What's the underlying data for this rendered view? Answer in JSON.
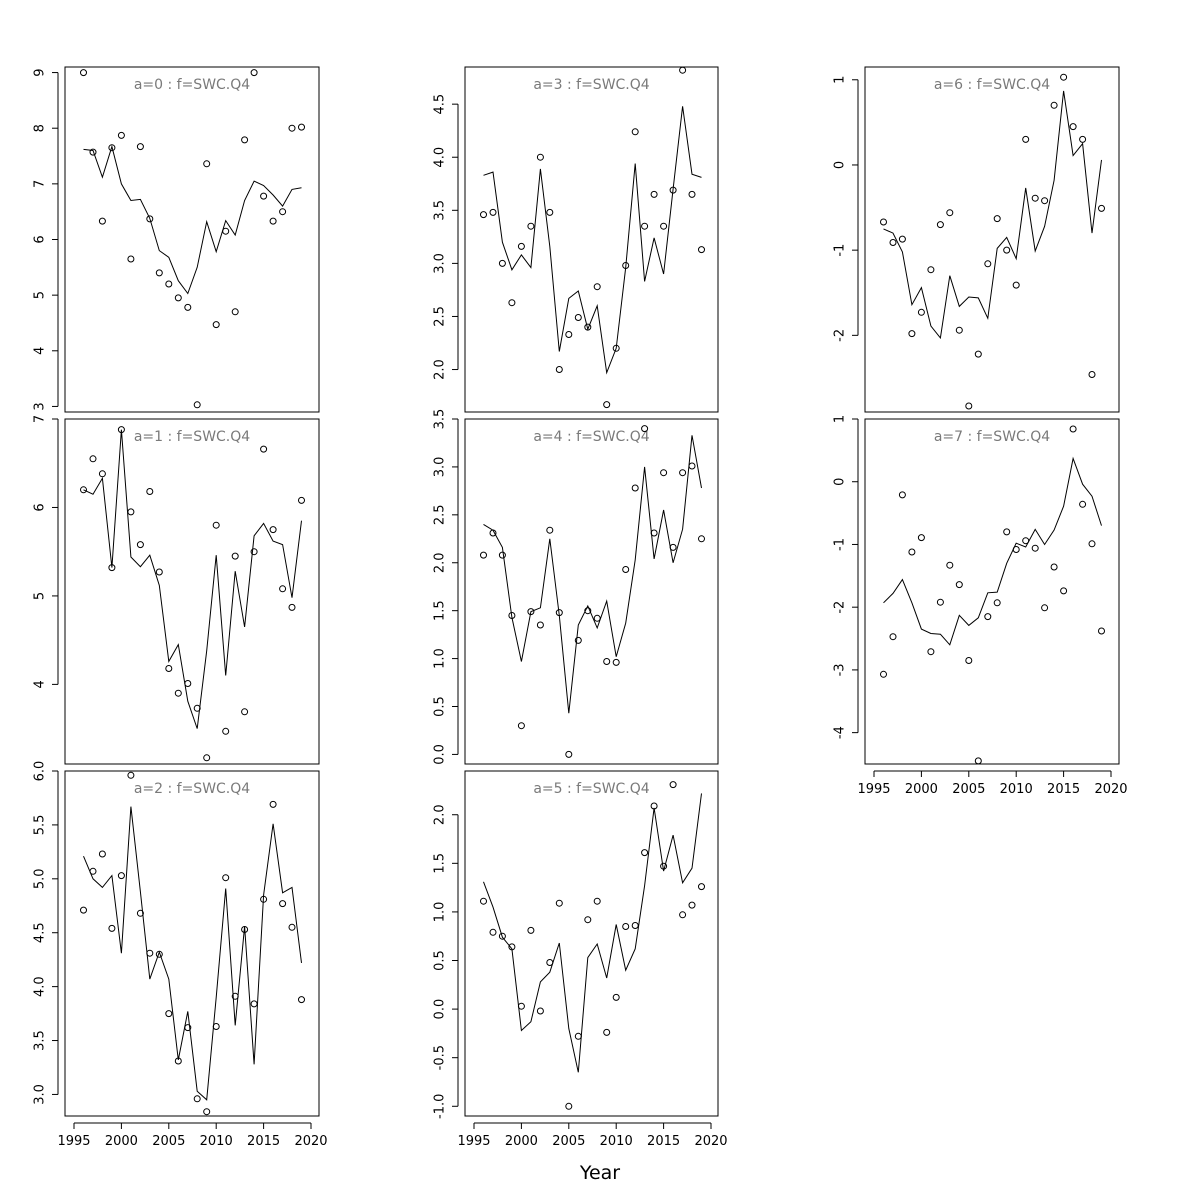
{
  "figure": {
    "xlabel": "Year"
  },
  "chart_data": [
    {
      "type": "scatter",
      "title": "a=0  :  f=SWC.Q4",
      "xlabel": "",
      "ylabel": "",
      "xlim": [
        1995,
        2020
      ],
      "ylim": [
        2.9,
        9.1
      ],
      "yticks": [
        3,
        4,
        5,
        6,
        7,
        8,
        9
      ],
      "xticks": [],
      "series": [
        {
          "kind": "points",
          "x": [
            1996,
            1997,
            1998,
            1999,
            2000,
            2001,
            2002,
            2003,
            2004,
            2005,
            2006,
            2007,
            2008,
            2009,
            2010,
            2011,
            2012,
            2013,
            2014,
            2015,
            2016,
            2017,
            2018,
            2019
          ],
          "values": [
            9.0,
            7.57,
            6.33,
            7.65,
            7.87,
            5.65,
            7.67,
            6.37,
            5.4,
            5.2,
            4.95,
            4.78,
            3.03,
            7.36,
            4.47,
            6.15,
            4.7,
            7.79,
            9.0,
            6.78,
            6.33,
            6.5,
            8.0,
            8.02
          ]
        },
        {
          "kind": "line",
          "x": [
            1996,
            1997,
            1998,
            1999,
            2000,
            2001,
            2002,
            2003,
            2004,
            2005,
            2006,
            2007,
            2008,
            2009,
            2010,
            2011,
            2012,
            2013,
            2014,
            2015,
            2016,
            2017,
            2018,
            2019
          ],
          "values": [
            7.62,
            7.6,
            7.12,
            7.67,
            7.0,
            6.7,
            6.72,
            6.38,
            5.8,
            5.68,
            5.26,
            5.03,
            5.5,
            6.32,
            5.78,
            6.34,
            6.08,
            6.7,
            7.05,
            6.97,
            6.8,
            6.6,
            6.9,
            6.93
          ]
        }
      ]
    },
    {
      "type": "scatter",
      "title": "a=1  :  f=SWC.Q4",
      "xlabel": "",
      "ylabel": "",
      "xlim": [
        1995,
        2020
      ],
      "ylim": [
        3.1,
        7.0
      ],
      "yticks": [
        4,
        5,
        6,
        7
      ],
      "xticks": [],
      "series": [
        {
          "kind": "points",
          "x": [
            1996,
            1997,
            1998,
            1999,
            2000,
            2001,
            2002,
            2003,
            2004,
            2005,
            2006,
            2007,
            2008,
            2009,
            2010,
            2011,
            2012,
            2013,
            2014,
            2015,
            2016,
            2017,
            2018,
            2019
          ],
          "values": [
            6.2,
            6.55,
            6.38,
            5.32,
            6.88,
            5.95,
            5.58,
            6.18,
            5.27,
            4.18,
            3.9,
            4.01,
            3.73,
            3.17,
            5.8,
            3.47,
            5.45,
            3.69,
            5.5,
            6.66,
            5.75,
            5.08,
            4.87,
            6.08
          ]
        },
        {
          "kind": "line",
          "x": [
            1996,
            1997,
            1998,
            1999,
            2000,
            2001,
            2002,
            2003,
            2004,
            2005,
            2006,
            2007,
            2008,
            2009,
            2010,
            2011,
            2012,
            2013,
            2014,
            2015,
            2016,
            2017,
            2018,
            2019
          ],
          "values": [
            6.2,
            6.15,
            6.33,
            5.32,
            6.88,
            5.44,
            5.33,
            5.46,
            5.12,
            4.26,
            4.45,
            3.81,
            3.5,
            4.38,
            5.46,
            4.1,
            5.28,
            4.65,
            5.68,
            5.82,
            5.62,
            5.58,
            4.98,
            5.85
          ]
        }
      ]
    },
    {
      "type": "scatter",
      "title": "a=2  :  f=SWC.Q4",
      "xlabel": "",
      "ylabel": "",
      "xlim": [
        1995,
        2020
      ],
      "ylim": [
        2.8,
        6.0
      ],
      "yticks": [
        3.0,
        3.5,
        4.0,
        4.5,
        5.0,
        5.5,
        6.0
      ],
      "ytick_labels": [
        "3.0",
        "3.5",
        "4.0",
        "4.5",
        "5.0",
        "5.5",
        "6.0"
      ],
      "xticks": [
        1995,
        2000,
        2005,
        2010,
        2015,
        2020
      ],
      "series": [
        {
          "kind": "points",
          "x": [
            1996,
            1997,
            1998,
            1999,
            2000,
            2001,
            2002,
            2003,
            2004,
            2005,
            2006,
            2007,
            2008,
            2009,
            2010,
            2011,
            2012,
            2013,
            2014,
            2015,
            2016,
            2017,
            2018,
            2019
          ],
          "values": [
            4.71,
            5.07,
            5.23,
            4.54,
            5.03,
            5.96,
            4.68,
            4.31,
            4.3,
            3.75,
            3.31,
            3.62,
            2.96,
            2.84,
            3.63,
            5.01,
            3.91,
            4.53,
            3.84,
            4.81,
            5.69,
            4.77,
            4.55,
            3.88
          ]
        },
        {
          "kind": "line",
          "x": [
            1996,
            1997,
            1998,
            1999,
            2000,
            2001,
            2002,
            2003,
            2004,
            2005,
            2006,
            2007,
            2008,
            2009,
            2010,
            2011,
            2012,
            2013,
            2014,
            2015,
            2016,
            2017,
            2018,
            2019
          ],
          "values": [
            5.21,
            5.0,
            4.92,
            5.03,
            4.31,
            5.67,
            4.88,
            4.07,
            4.32,
            4.07,
            3.32,
            3.77,
            3.03,
            2.95,
            3.9,
            4.91,
            3.64,
            4.56,
            3.28,
            4.85,
            5.51,
            4.87,
            4.92,
            4.22
          ]
        }
      ]
    },
    {
      "type": "scatter",
      "title": "a=3  :  f=SWC.Q4",
      "xlabel": "",
      "ylabel": "",
      "xlim": [
        1995,
        2020
      ],
      "ylim": [
        1.6,
        4.85
      ],
      "yticks": [
        2.0,
        2.5,
        3.0,
        3.5,
        4.0,
        4.5
      ],
      "ytick_labels": [
        "2.0",
        "2.5",
        "3.0",
        "3.5",
        "4.0",
        "4.5"
      ],
      "xticks": [],
      "series": [
        {
          "kind": "points",
          "x": [
            1996,
            1997,
            1998,
            1999,
            2000,
            2001,
            2002,
            2003,
            2004,
            2005,
            2006,
            2007,
            2008,
            2009,
            2010,
            2011,
            2012,
            2013,
            2014,
            2015,
            2016,
            2017,
            2018,
            2019
          ],
          "values": [
            3.46,
            3.48,
            3.0,
            2.63,
            3.16,
            3.35,
            4.0,
            3.48,
            2.0,
            2.33,
            2.49,
            2.4,
            2.78,
            1.67,
            2.2,
            2.98,
            4.24,
            3.35,
            3.65,
            3.35,
            3.69,
            4.82,
            3.65,
            3.13
          ]
        },
        {
          "kind": "line",
          "x": [
            1996,
            1997,
            1998,
            1999,
            2000,
            2001,
            2002,
            2003,
            2004,
            2005,
            2006,
            2007,
            2008,
            2009,
            2010,
            2011,
            2012,
            2013,
            2014,
            2015,
            2016,
            2017,
            2018,
            2019
          ],
          "values": [
            3.83,
            3.86,
            3.2,
            2.94,
            3.08,
            2.96,
            3.89,
            3.16,
            2.17,
            2.67,
            2.74,
            2.38,
            2.6,
            1.97,
            2.2,
            2.96,
            3.94,
            2.83,
            3.24,
            2.9,
            3.7,
            4.48,
            3.84,
            3.81
          ]
        }
      ]
    },
    {
      "type": "scatter",
      "title": "a=4  :  f=SWC.Q4",
      "xlabel": "",
      "ylabel": "",
      "xlim": [
        1995,
        2020
      ],
      "ylim": [
        -0.1,
        3.5
      ],
      "yticks": [
        0.0,
        0.5,
        1.0,
        1.5,
        2.0,
        2.5,
        3.0,
        3.5
      ],
      "ytick_labels": [
        "0.0",
        "0.5",
        "1.0",
        "1.5",
        "2.0",
        "2.5",
        "3.0",
        "3.5"
      ],
      "xticks": [],
      "series": [
        {
          "kind": "points",
          "x": [
            1996,
            1997,
            1998,
            1999,
            2000,
            2001,
            2002,
            2003,
            2004,
            2005,
            2006,
            2007,
            2008,
            2009,
            2010,
            2011,
            2012,
            2013,
            2014,
            2015,
            2016,
            2017,
            2018,
            2019
          ],
          "values": [
            2.08,
            2.31,
            2.08,
            1.45,
            0.3,
            1.49,
            1.35,
            2.34,
            1.48,
            0.0,
            1.19,
            1.5,
            1.42,
            0.97,
            0.96,
            1.93,
            2.78,
            3.4,
            2.31,
            2.94,
            2.16,
            2.94,
            3.01,
            2.25
          ]
        },
        {
          "kind": "line",
          "x": [
            1996,
            1997,
            1998,
            1999,
            2000,
            2001,
            2002,
            2003,
            2004,
            2005,
            2006,
            2007,
            2008,
            2009,
            2010,
            2011,
            2012,
            2013,
            2014,
            2015,
            2016,
            2017,
            2018,
            2019
          ],
          "values": [
            2.4,
            2.34,
            2.16,
            1.43,
            0.97,
            1.49,
            1.53,
            2.25,
            1.45,
            0.43,
            1.35,
            1.55,
            1.32,
            1.6,
            1.02,
            1.37,
            2.03,
            3.0,
            2.04,
            2.55,
            2.0,
            2.35,
            3.33,
            2.78
          ]
        }
      ]
    },
    {
      "type": "scatter",
      "title": "a=5  :  f=SWC.Q4",
      "xlabel": "",
      "ylabel": "",
      "xlim": [
        1995,
        2020
      ],
      "ylim": [
        -1.1,
        2.45
      ],
      "yticks": [
        -1.0,
        -0.5,
        0.0,
        0.5,
        1.0,
        1.5,
        2.0
      ],
      "ytick_labels": [
        "-1.0",
        "-0.5",
        "0.0",
        "0.5",
        "1.0",
        "1.5",
        "2.0"
      ],
      "xticks": [
        1995,
        2000,
        2005,
        2010,
        2015,
        2020
      ],
      "series": [
        {
          "kind": "points",
          "x": [
            1996,
            1997,
            1998,
            1999,
            2000,
            2001,
            2002,
            2003,
            2004,
            2005,
            2006,
            2007,
            2008,
            2009,
            2010,
            2011,
            2012,
            2013,
            2014,
            2015,
            2016,
            2017,
            2018,
            2019
          ],
          "values": [
            1.11,
            0.79,
            0.75,
            0.64,
            0.03,
            0.81,
            -0.02,
            0.48,
            1.09,
            -1.0,
            -0.28,
            0.92,
            1.11,
            -0.24,
            0.12,
            0.85,
            0.86,
            1.61,
            2.09,
            1.47,
            2.31,
            0.97,
            1.07,
            1.26
          ]
        },
        {
          "kind": "line",
          "x": [
            1996,
            1997,
            1998,
            1999,
            2000,
            2001,
            2002,
            2003,
            2004,
            2005,
            2006,
            2007,
            2008,
            2009,
            2010,
            2011,
            2012,
            2013,
            2014,
            2015,
            2016,
            2017,
            2018,
            2019
          ],
          "values": [
            1.31,
            1.05,
            0.74,
            0.62,
            -0.22,
            -0.13,
            0.28,
            0.38,
            0.68,
            -0.2,
            -0.65,
            0.53,
            0.67,
            0.32,
            0.87,
            0.4,
            0.62,
            1.27,
            2.07,
            1.42,
            1.79,
            1.3,
            1.45,
            2.22
          ]
        }
      ]
    },
    {
      "type": "scatter",
      "title": "a=6  :  f=SWC.Q4",
      "xlabel": "",
      "ylabel": "",
      "xlim": [
        1995,
        2020
      ],
      "ylim": [
        -2.9,
        1.15
      ],
      "yticks": [
        -2,
        -1,
        0,
        1
      ],
      "xticks": [],
      "series": [
        {
          "kind": "points",
          "x": [
            1996,
            1997,
            1998,
            1999,
            2000,
            2001,
            2002,
            2003,
            2004,
            2005,
            2006,
            2007,
            2008,
            2009,
            2010,
            2011,
            2012,
            2013,
            2014,
            2015,
            2016,
            2017,
            2018,
            2019
          ],
          "values": [
            -0.67,
            -0.91,
            -0.87,
            -1.98,
            -1.73,
            -1.23,
            -0.7,
            -0.56,
            -1.94,
            -2.83,
            -2.22,
            -1.16,
            -0.63,
            -1.0,
            -1.41,
            0.3,
            -0.39,
            -0.42,
            0.7,
            1.03,
            0.45,
            0.3,
            -2.46,
            -0.51
          ]
        },
        {
          "kind": "line",
          "x": [
            1996,
            1997,
            1998,
            1999,
            2000,
            2001,
            2002,
            2003,
            2004,
            2005,
            2006,
            2007,
            2008,
            2009,
            2010,
            2011,
            2012,
            2013,
            2014,
            2015,
            2016,
            2017,
            2018,
            2019
          ],
          "values": [
            -0.75,
            -0.8,
            -1.02,
            -1.64,
            -1.44,
            -1.89,
            -2.03,
            -1.3,
            -1.66,
            -1.55,
            -1.56,
            -1.8,
            -0.98,
            -0.85,
            -1.1,
            -0.27,
            -1.01,
            -0.72,
            -0.18,
            0.87,
            0.11,
            0.25,
            -0.8,
            0.06
          ]
        }
      ]
    },
    {
      "type": "scatter",
      "title": "a=7  :  f=SWC.Q4",
      "xlabel": "",
      "ylabel": "",
      "xlim": [
        1995,
        2020
      ],
      "ylim": [
        -4.5,
        1.0
      ],
      "yticks": [
        -4,
        -3,
        -2,
        -1,
        0,
        1
      ],
      "xticks": [
        1995,
        2000,
        2005,
        2010,
        2015,
        2020
      ],
      "series": [
        {
          "kind": "points",
          "x": [
            1996,
            1997,
            1998,
            1999,
            2000,
            2001,
            2002,
            2003,
            2004,
            2005,
            2006,
            2007,
            2008,
            2009,
            2010,
            2011,
            2012,
            2013,
            2014,
            2015,
            2016,
            2017,
            2018,
            2019
          ],
          "values": [
            -3.07,
            -2.47,
            -0.21,
            -1.12,
            -0.89,
            -2.71,
            -1.92,
            -1.33,
            -1.64,
            -2.85,
            -4.45,
            -2.15,
            -1.93,
            -0.8,
            -1.08,
            -0.94,
            -1.06,
            -2.01,
            -1.36,
            -1.74,
            0.84,
            -0.36,
            -0.99,
            -2.38
          ]
        },
        {
          "kind": "line",
          "x": [
            1996,
            1997,
            1998,
            1999,
            2000,
            2001,
            2002,
            2003,
            2004,
            2005,
            2006,
            2007,
            2008,
            2009,
            2010,
            2011,
            2012,
            2013,
            2014,
            2015,
            2016,
            2017,
            2018,
            2019
          ],
          "values": [
            -1.93,
            -1.78,
            -1.56,
            -1.93,
            -2.35,
            -2.42,
            -2.43,
            -2.6,
            -2.13,
            -2.29,
            -2.17,
            -1.77,
            -1.76,
            -1.3,
            -0.98,
            -1.04,
            -0.76,
            -1.0,
            -0.77,
            -0.39,
            0.37,
            -0.04,
            -0.23,
            -0.7
          ]
        }
      ]
    }
  ]
}
